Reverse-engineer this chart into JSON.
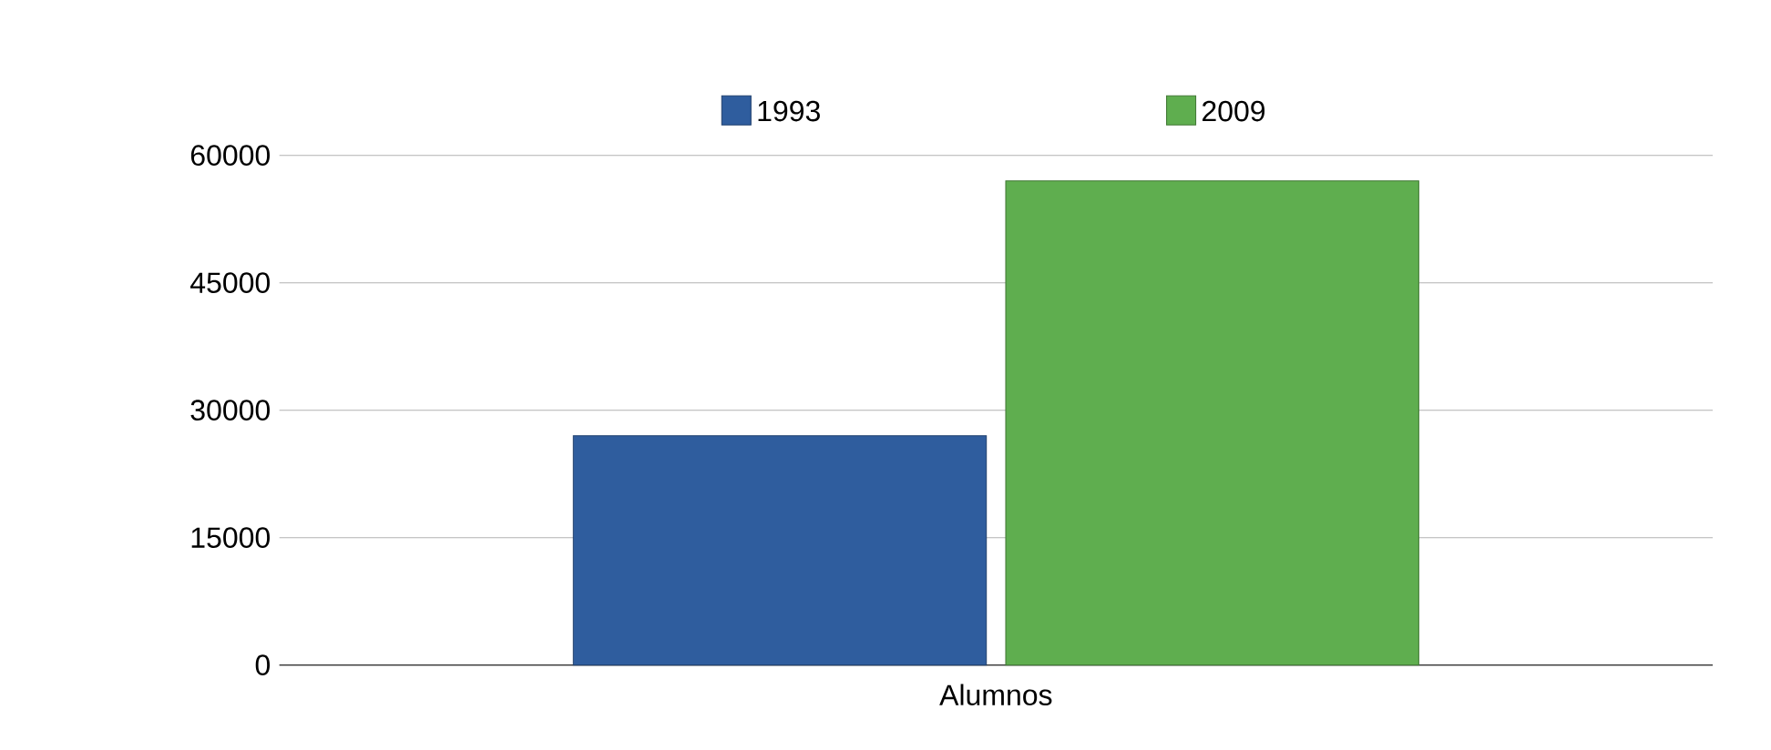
{
  "chart_data": {
    "type": "bar",
    "categories": [
      "Alumnos"
    ],
    "series": [
      {
        "name": "1993",
        "color": "#2f5d9e",
        "values": [
          27000
        ]
      },
      {
        "name": "2009",
        "color": "#5fae4f",
        "values": [
          57000
        ]
      }
    ],
    "ylim": [
      0,
      60000
    ],
    "yticks": [
      0,
      15000,
      30000,
      45000,
      60000
    ],
    "grid": "y",
    "legend": "top"
  }
}
